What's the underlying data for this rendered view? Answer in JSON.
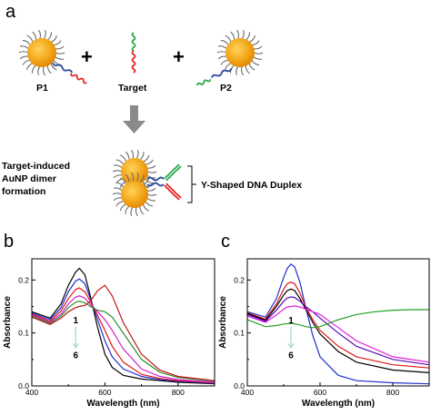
{
  "panel_a": {
    "letter": "a",
    "p1_label": "P1",
    "target_label": "Target",
    "p2_label": "P2",
    "plus": "+",
    "caption_lines": [
      "Target-induced",
      "AuNP dimer",
      "formation"
    ],
    "duplex_label": "Y-Shaped DNA Duplex",
    "colors": {
      "gold": "#f2a91c",
      "gold_dark": "#e08a00",
      "ligand": "#666666",
      "blue": "#2b4c9a",
      "red": "#e32626",
      "green": "#2aa84a",
      "arrow": "#8a8a8a"
    }
  },
  "chart_data": [
    {
      "panel": "b",
      "type": "line",
      "xlabel": "Wavelength (nm)",
      "ylabel": "Absorbance",
      "xlim": [
        400,
        900
      ],
      "ylim": [
        0,
        0.24
      ],
      "xticks": [
        400,
        600,
        800
      ],
      "yticks": [
        0.0,
        0.1,
        0.2
      ],
      "ytick_labels": [
        "0.0",
        "0.1",
        "0.2"
      ],
      "annotation_top": "1",
      "annotation_bottom": "6",
      "series": [
        {
          "color": "#000000",
          "points": [
            [
              400,
              0.14
            ],
            [
              450,
              0.128
            ],
            [
              480,
              0.155
            ],
            [
              500,
              0.19
            ],
            [
              520,
              0.215
            ],
            [
              530,
              0.222
            ],
            [
              545,
              0.21
            ],
            [
              560,
              0.17
            ],
            [
              580,
              0.11
            ],
            [
              600,
              0.06
            ],
            [
              620,
              0.035
            ],
            [
              650,
              0.02
            ],
            [
              700,
              0.013
            ],
            [
              750,
              0.01
            ],
            [
              800,
              0.007
            ],
            [
              900,
              0.004
            ]
          ]
        },
        {
          "color": "#1f2fd0",
          "points": [
            [
              400,
              0.138
            ],
            [
              450,
              0.125
            ],
            [
              480,
              0.148
            ],
            [
              500,
              0.178
            ],
            [
              520,
              0.198
            ],
            [
              530,
              0.202
            ],
            [
              545,
              0.193
            ],
            [
              560,
              0.165
            ],
            [
              580,
              0.125
            ],
            [
              600,
              0.085
            ],
            [
              620,
              0.055
            ],
            [
              650,
              0.032
            ],
            [
              700,
              0.018
            ],
            [
              750,
              0.012
            ],
            [
              800,
              0.009
            ],
            [
              900,
              0.005
            ]
          ]
        },
        {
          "color": "#e01818",
          "points": [
            [
              400,
              0.136
            ],
            [
              450,
              0.122
            ],
            [
              480,
              0.142
            ],
            [
              500,
              0.165
            ],
            [
              520,
              0.182
            ],
            [
              530,
              0.185
            ],
            [
              545,
              0.178
            ],
            [
              560,
              0.16
            ],
            [
              580,
              0.133
            ],
            [
              600,
              0.105
            ],
            [
              620,
              0.075
            ],
            [
              650,
              0.045
            ],
            [
              700,
              0.022
            ],
            [
              750,
              0.014
            ],
            [
              800,
              0.01
            ],
            [
              900,
              0.006
            ]
          ]
        },
        {
          "color": "#d21ed2",
          "points": [
            [
              400,
              0.134
            ],
            [
              450,
              0.12
            ],
            [
              480,
              0.136
            ],
            [
              500,
              0.155
            ],
            [
              520,
              0.168
            ],
            [
              530,
              0.17
            ],
            [
              545,
              0.166
            ],
            [
              560,
              0.154
            ],
            [
              580,
              0.14
            ],
            [
              600,
              0.125
            ],
            [
              620,
              0.105
            ],
            [
              650,
              0.07
            ],
            [
              700,
              0.032
            ],
            [
              750,
              0.018
            ],
            [
              800,
              0.012
            ],
            [
              900,
              0.007
            ]
          ]
        },
        {
          "color": "#2a8a2a",
          "points": [
            [
              400,
              0.132
            ],
            [
              450,
              0.118
            ],
            [
              480,
              0.132
            ],
            [
              500,
              0.148
            ],
            [
              520,
              0.158
            ],
            [
              530,
              0.16
            ],
            [
              545,
              0.157
            ],
            [
              560,
              0.15
            ],
            [
              580,
              0.143
            ],
            [
              600,
              0.14
            ],
            [
              620,
              0.13
            ],
            [
              650,
              0.1
            ],
            [
              700,
              0.05
            ],
            [
              750,
              0.026
            ],
            [
              800,
              0.016
            ],
            [
              900,
              0.009
            ]
          ]
        },
        {
          "color": "#c01818",
          "points": [
            [
              400,
              0.13
            ],
            [
              450,
              0.116
            ],
            [
              480,
              0.128
            ],
            [
              500,
              0.14
            ],
            [
              520,
              0.148
            ],
            [
              530,
              0.15
            ],
            [
              545,
              0.152
            ],
            [
              560,
              0.16
            ],
            [
              580,
              0.18
            ],
            [
              600,
              0.19
            ],
            [
              620,
              0.17
            ],
            [
              650,
              0.12
            ],
            [
              700,
              0.06
            ],
            [
              750,
              0.03
            ],
            [
              800,
              0.018
            ],
            [
              900,
              0.01
            ]
          ]
        }
      ]
    },
    {
      "panel": "c",
      "type": "line",
      "xlabel": "Wavelength (nm)",
      "ylabel": "Absorbance",
      "xlim": [
        400,
        900
      ],
      "ylim": [
        0,
        0.24
      ],
      "xticks": [
        400,
        600,
        800
      ],
      "yticks": [
        0.0,
        0.1,
        0.2
      ],
      "ytick_labels": [
        "0.0",
        "0.1",
        "0.2"
      ],
      "annotation_top": "1",
      "annotation_bottom": "6",
      "series": [
        {
          "color": "#1f2fd0",
          "points": [
            [
              400,
              0.14
            ],
            [
              450,
              0.13
            ],
            [
              480,
              0.165
            ],
            [
              500,
              0.205
            ],
            [
              510,
              0.222
            ],
            [
              520,
              0.23
            ],
            [
              530,
              0.225
            ],
            [
              545,
              0.195
            ],
            [
              560,
              0.15
            ],
            [
              580,
              0.095
            ],
            [
              600,
              0.055
            ],
            [
              650,
              0.02
            ],
            [
              700,
              0.01
            ],
            [
              800,
              0.006
            ],
            [
              900,
              0.004
            ]
          ]
        },
        {
          "color": "#e01818",
          "points": [
            [
              400,
              0.138
            ],
            [
              450,
              0.126
            ],
            [
              480,
              0.155
            ],
            [
              500,
              0.183
            ],
            [
              510,
              0.193
            ],
            [
              520,
              0.196
            ],
            [
              530,
              0.193
            ],
            [
              545,
              0.175
            ],
            [
              560,
              0.15
            ],
            [
              580,
              0.125
            ],
            [
              600,
              0.105
            ],
            [
              650,
              0.075
            ],
            [
              700,
              0.055
            ],
            [
              800,
              0.04
            ],
            [
              900,
              0.034
            ]
          ]
        },
        {
          "color": "#000000",
          "points": [
            [
              400,
              0.137
            ],
            [
              450,
              0.124
            ],
            [
              480,
              0.15
            ],
            [
              500,
              0.172
            ],
            [
              510,
              0.18
            ],
            [
              520,
              0.183
            ],
            [
              530,
              0.18
            ],
            [
              545,
              0.165
            ],
            [
              560,
              0.145
            ],
            [
              580,
              0.12
            ],
            [
              600,
              0.098
            ],
            [
              650,
              0.065
            ],
            [
              700,
              0.045
            ],
            [
              800,
              0.03
            ],
            [
              900,
              0.025
            ]
          ]
        },
        {
          "color": "#5a0ab4",
          "points": [
            [
              400,
              0.135
            ],
            [
              450,
              0.122
            ],
            [
              480,
              0.143
            ],
            [
              500,
              0.16
            ],
            [
              510,
              0.166
            ],
            [
              520,
              0.168
            ],
            [
              530,
              0.167
            ],
            [
              545,
              0.16
            ],
            [
              560,
              0.15
            ],
            [
              580,
              0.14
            ],
            [
              600,
              0.128
            ],
            [
              650,
              0.1
            ],
            [
              700,
              0.075
            ],
            [
              800,
              0.05
            ],
            [
              900,
              0.04
            ]
          ]
        },
        {
          "color": "#e01ee0",
          "points": [
            [
              400,
              0.132
            ],
            [
              450,
              0.12
            ],
            [
              480,
              0.134
            ],
            [
              500,
              0.145
            ],
            [
              510,
              0.149
            ],
            [
              520,
              0.15
            ],
            [
              530,
              0.151
            ],
            [
              545,
              0.149
            ],
            [
              560,
              0.145
            ],
            [
              580,
              0.14
            ],
            [
              600,
              0.135
            ],
            [
              650,
              0.11
            ],
            [
              700,
              0.085
            ],
            [
              800,
              0.055
            ],
            [
              900,
              0.045
            ]
          ]
        },
        {
          "color": "#22a022",
          "points": [
            [
              400,
              0.125
            ],
            [
              450,
              0.112
            ],
            [
              480,
              0.114
            ],
            [
              500,
              0.117
            ],
            [
              520,
              0.118
            ],
            [
              540,
              0.116
            ],
            [
              560,
              0.112
            ],
            [
              580,
              0.11
            ],
            [
              600,
              0.112
            ],
            [
              650,
              0.125
            ],
            [
              700,
              0.135
            ],
            [
              750,
              0.14
            ],
            [
              800,
              0.143
            ],
            [
              850,
              0.144
            ],
            [
              900,
              0.144
            ]
          ]
        }
      ]
    }
  ]
}
